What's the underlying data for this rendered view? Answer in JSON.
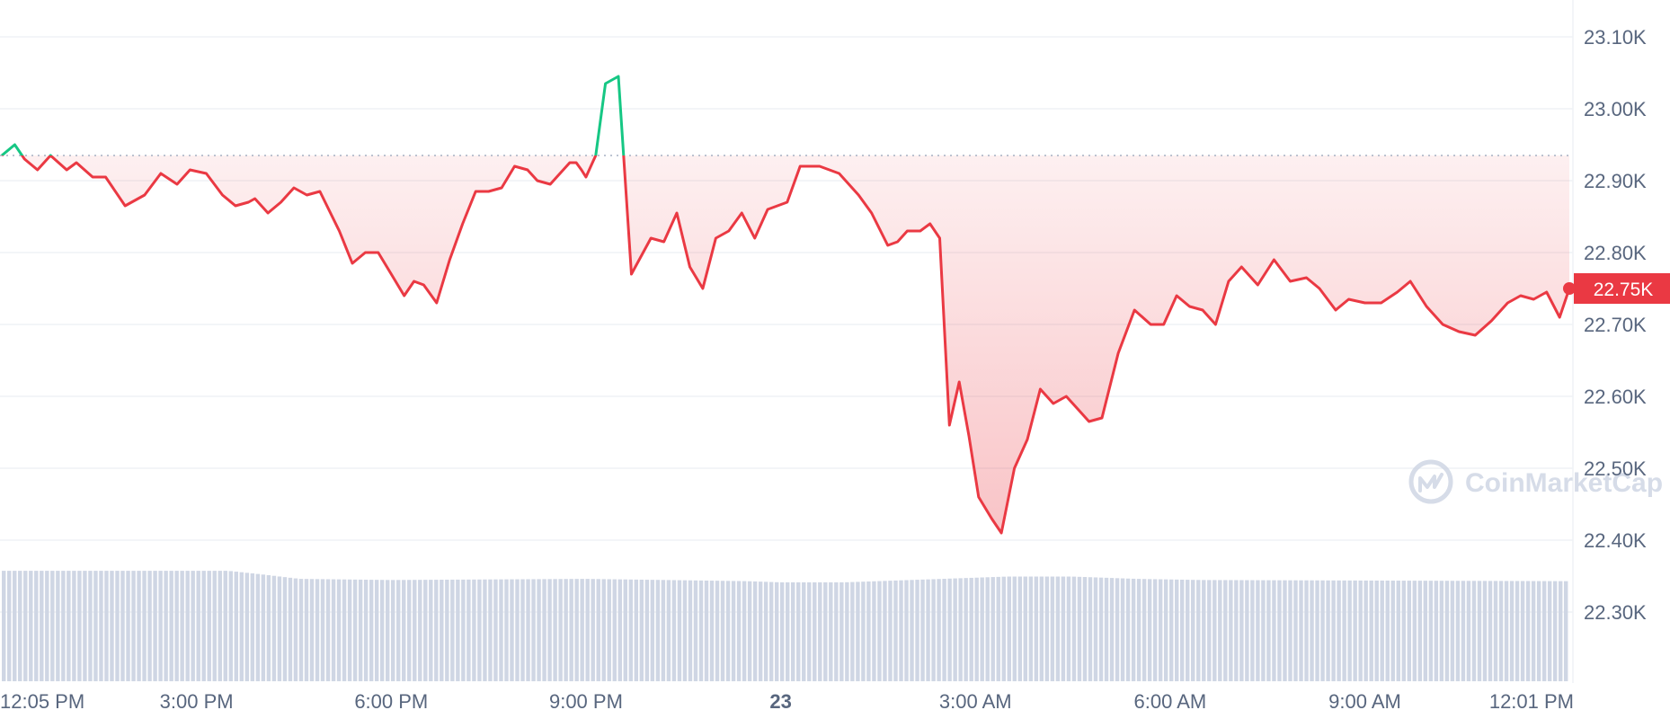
{
  "chart_data": {
    "type": "line",
    "title": "",
    "xlabel": "",
    "ylabel": "",
    "ylim": [
      22220,
      23160
    ],
    "y_ticks": [
      "23.10K",
      "23.00K",
      "22.90K",
      "22.80K",
      "22.70K",
      "22.60K",
      "22.50K",
      "22.40K",
      "22.30K"
    ],
    "y_tick_values": [
      23100,
      23000,
      22900,
      22800,
      22700,
      22600,
      22500,
      22400,
      22300
    ],
    "x_ticks": [
      "12:05 PM",
      "3:00 PM",
      "6:00 PM",
      "9:00 PM",
      "23",
      "3:00 AM",
      "6:00 AM",
      "9:00 AM",
      "12:01 PM"
    ],
    "x_tick_values": [
      0.08,
      3,
      6,
      9,
      12,
      15,
      18,
      21,
      24.02
    ],
    "x_tick_bold": [
      false,
      false,
      false,
      false,
      true,
      false,
      false,
      false,
      false
    ],
    "xlim": [
      0,
      24.15
    ],
    "reference_price": 22935,
    "current_price": 22750,
    "current_price_label": "22.75K",
    "grid": true,
    "colors": {
      "up": "#16c784",
      "down": "#ea3943",
      "volume": "#cfd6e4",
      "grid": "#eff2f5",
      "axis_text": "#58667e",
      "reference_line": "#a6b0c3"
    },
    "series": [
      {
        "x": [
          0,
          0.2,
          0.35,
          0.55,
          0.75,
          1.0,
          1.15,
          1.4,
          1.6,
          1.9,
          2.2,
          2.45,
          2.7,
          2.9,
          3.15,
          3.4,
          3.6,
          3.8,
          3.9,
          4.1,
          4.3,
          4.5,
          4.7,
          4.9,
          5.2,
          5.4,
          5.6,
          5.8,
          6.0,
          6.2,
          6.35,
          6.5,
          6.7,
          6.9,
          7.1,
          7.3,
          7.5,
          7.7,
          7.9,
          8.1,
          8.25,
          8.45,
          8.55,
          8.75,
          8.85,
          8.93,
          9.0,
          9.15,
          9.3,
          9.5,
          9.7,
          10.0,
          10.2,
          10.4,
          10.6,
          10.8,
          11.0,
          11.2,
          11.4,
          11.6,
          11.8,
          12.1,
          12.3,
          12.6,
          12.9,
          13.2,
          13.4,
          13.65,
          13.8,
          13.95,
          14.15,
          14.3,
          14.45,
          14.6,
          14.75,
          14.9,
          15.05,
          15.25,
          15.4,
          15.6,
          15.8,
          16.0,
          16.2,
          16.4,
          16.6,
          16.75,
          16.95,
          17.2,
          17.45,
          17.7,
          17.9,
          18.1,
          18.3,
          18.5,
          18.7,
          18.9,
          19.1,
          19.35,
          19.6,
          19.85,
          20.1,
          20.3,
          20.55,
          20.75,
          21.0,
          21.25,
          21.5,
          21.7,
          21.95,
          22.2,
          22.45,
          22.7,
          22.95,
          23.2,
          23.4,
          23.6,
          23.8,
          24.0,
          24.15
        ],
        "y": [
          22935,
          22950,
          22930,
          22915,
          22935,
          22915,
          22925,
          22905,
          22905,
          22865,
          22880,
          22910,
          22895,
          22915,
          22910,
          22880,
          22865,
          22870,
          22875,
          22855,
          22870,
          22890,
          22880,
          22885,
          22830,
          22785,
          22800,
          22800,
          22770,
          22740,
          22760,
          22755,
          22730,
          22790,
          22840,
          22885,
          22885,
          22890,
          22920,
          22915,
          22900,
          22895,
          22905,
          22925,
          22925,
          22915,
          22905,
          22935,
          23035,
          23045,
          22770,
          22820,
          22815,
          22855,
          22780,
          22750,
          22820,
          22830,
          22855,
          22820,
          22860,
          22870,
          22920,
          22920,
          22910,
          22880,
          22855,
          22810,
          22815,
          22830,
          22830,
          22840,
          22820,
          22560,
          22620,
          22545,
          22460,
          22430,
          22410,
          22500,
          22540,
          22610,
          22590,
          22600,
          22580,
          22565,
          22570,
          22660,
          22720,
          22700,
          22700,
          22740,
          22725,
          22720,
          22700,
          22760,
          22780,
          22755,
          22790,
          22760,
          22765,
          22750,
          22720,
          22735,
          22730,
          22730,
          22745,
          22760,
          22725,
          22700,
          22690,
          22685,
          22705,
          22730,
          22740,
          22735,
          22745,
          22710,
          22750
        ]
      }
    ],
    "volume": {
      "x": [
        0,
        3.5,
        4.0,
        4.6,
        6.0,
        9.0,
        11.5,
        12.0,
        13.0,
        14.0,
        15.5,
        16.5,
        17.5,
        18.5,
        24.15
      ],
      "level": [
        0.96,
        0.96,
        0.93,
        0.89,
        0.88,
        0.89,
        0.87,
        0.86,
        0.86,
        0.88,
        0.91,
        0.91,
        0.89,
        0.88,
        0.87
      ]
    }
  },
  "watermark": {
    "text": "CoinMarketCap",
    "icon": "coinmarketcap-logo-icon"
  }
}
